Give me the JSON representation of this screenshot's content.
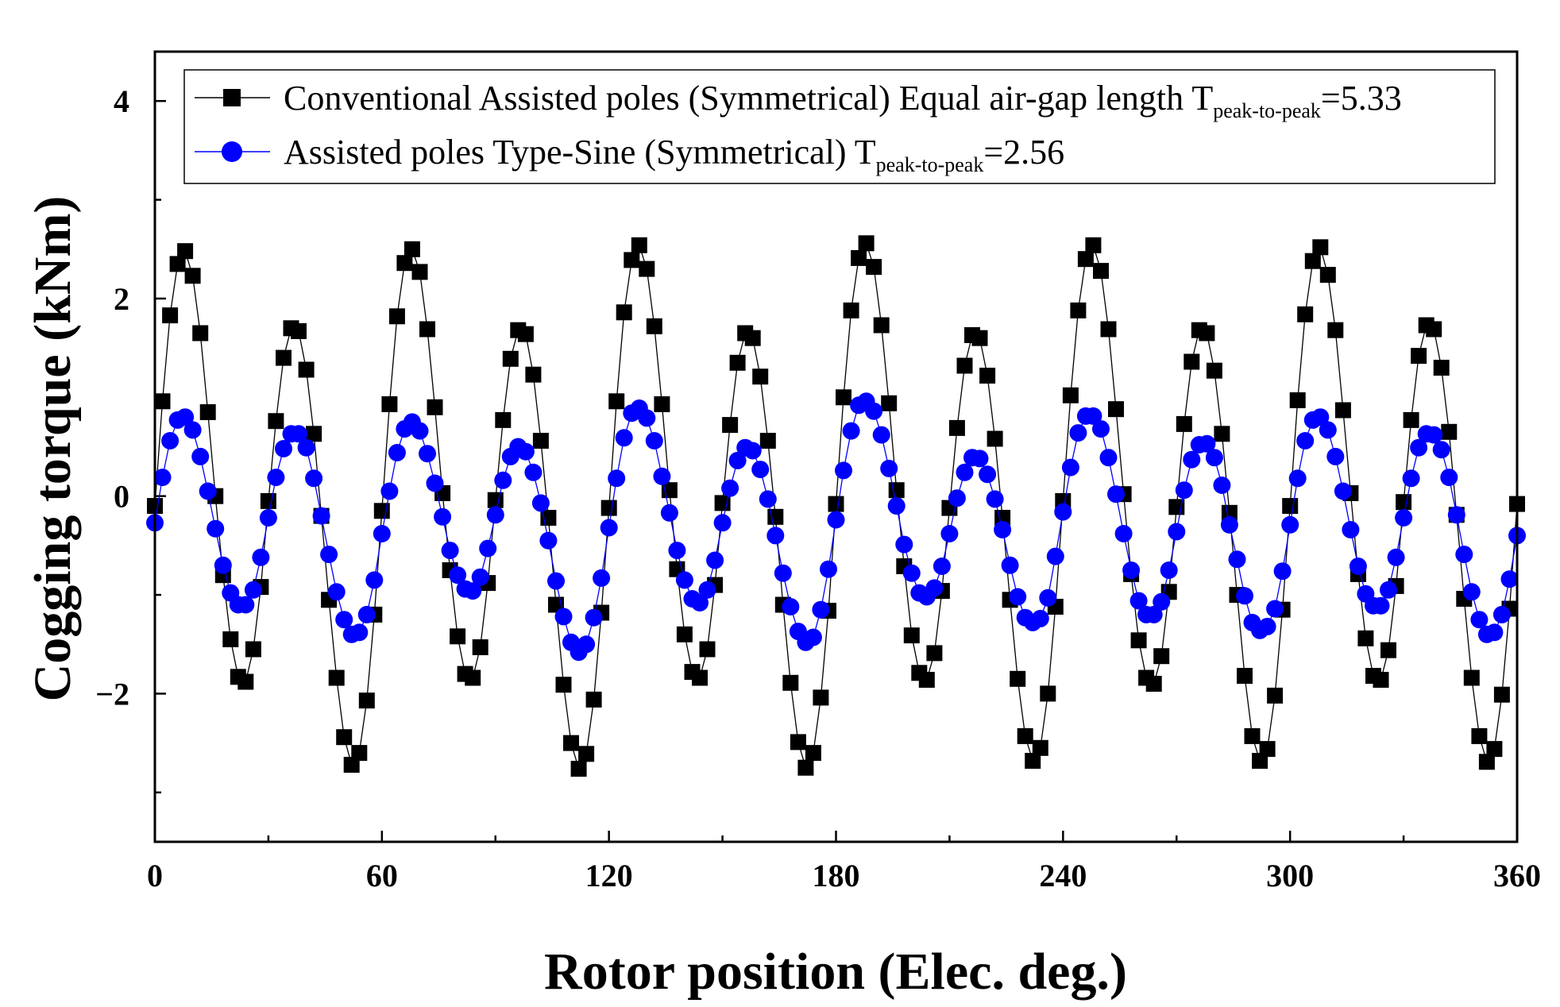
{
  "chart_data": {
    "type": "line",
    "title": "",
    "xlabel": "Rotor position (Elec. deg.)",
    "ylabel": "Cogging torque (kNm)",
    "xlim": [
      0,
      360
    ],
    "ylim": [
      -3.5,
      4.5
    ],
    "xticks": [
      "0",
      "60",
      "120",
      "180",
      "240",
      "300",
      "360"
    ],
    "yticks": [
      "−2",
      "0",
      "2",
      "4"
    ],
    "ytick_values": [
      -2,
      0,
      2,
      4
    ],
    "xtick_values": [
      0,
      60,
      120,
      180,
      240,
      300,
      360
    ],
    "legend_position": "top",
    "x_step": 2,
    "series": [
      {
        "name": "conventional",
        "label_main": "Conventional Assisted poles (Symmetrical) Equal air-gap length T",
        "label_sub": "peak-to-peak",
        "label_tail": "=5.33",
        "color": "#000000",
        "marker": "square",
        "values": [
          -0.1,
          0.96,
          1.83,
          2.35,
          2.48,
          2.23,
          1.65,
          0.85,
          0.0,
          -0.8,
          -1.45,
          -1.83,
          -1.88,
          -1.55,
          -0.92,
          -0.05,
          0.76,
          1.4,
          1.7,
          1.67,
          1.28,
          0.63,
          -0.2,
          -1.05,
          -1.84,
          -2.44,
          -2.72,
          -2.6,
          -2.07,
          -1.2,
          -0.15,
          0.93,
          1.82,
          2.36,
          2.5,
          2.27,
          1.69,
          0.9,
          0.03,
          -0.75,
          -1.42,
          -1.8,
          -1.84,
          -1.53,
          -0.88,
          -0.04,
          0.77,
          1.39,
          1.68,
          1.64,
          1.23,
          0.56,
          -0.22,
          -1.1,
          -1.91,
          -2.5,
          -2.76,
          -2.61,
          -2.06,
          -1.18,
          -0.12,
          0.96,
          1.86,
          2.39,
          2.54,
          2.3,
          1.72,
          0.93,
          0.06,
          -0.74,
          -1.4,
          -1.78,
          -1.84,
          -1.55,
          -0.9,
          -0.07,
          0.72,
          1.35,
          1.65,
          1.6,
          1.21,
          0.56,
          -0.21,
          -1.1,
          -1.89,
          -2.49,
          -2.75,
          -2.6,
          -2.04,
          -1.16,
          -0.08,
          1.0,
          1.88,
          2.41,
          2.56,
          2.32,
          1.73,
          0.94,
          0.06,
          -0.71,
          -1.41,
          -1.79,
          -1.86,
          -1.59,
          -0.96,
          -0.12,
          0.69,
          1.32,
          1.63,
          1.6,
          1.22,
          0.58,
          -0.22,
          -1.05,
          -1.85,
          -2.43,
          -2.68,
          -2.55,
          -2.0,
          -1.12,
          -0.05,
          1.02,
          1.88,
          2.4,
          2.54,
          2.28,
          1.69,
          0.88,
          0.02,
          -0.79,
          -1.46,
          -1.84,
          -1.9,
          -1.62,
          -0.97,
          -0.11,
          0.73,
          1.36,
          1.68,
          1.65,
          1.27,
          0.63,
          -0.17,
          -1.0,
          -1.82,
          -2.43,
          -2.68,
          -2.56,
          -2.02,
          -1.15,
          -0.1,
          0.97,
          1.84,
          2.38,
          2.52,
          2.24,
          1.68,
          0.87,
          0.03,
          -0.79,
          -1.44,
          -1.82,
          -1.86,
          -1.56,
          -0.91,
          -0.06,
          0.77,
          1.42,
          1.73,
          1.69,
          1.3,
          0.65,
          -0.19,
          -1.04,
          -1.84,
          -2.43,
          -2.69,
          -2.56,
          -2.01,
          -1.14,
          -0.08
        ]
      },
      {
        "name": "type-sine",
        "label_main": "Assisted poles Type-Sine (Symmetrical) T",
        "label_sub": "peak-to-peak",
        "label_tail": "=2.56",
        "color": "#0000ff",
        "marker": "circle",
        "values": [
          -0.27,
          0.19,
          0.56,
          0.77,
          0.8,
          0.67,
          0.4,
          0.05,
          -0.33,
          -0.7,
          -0.98,
          -1.1,
          -1.1,
          -0.95,
          -0.62,
          -0.22,
          0.19,
          0.48,
          0.63,
          0.63,
          0.49,
          0.18,
          -0.2,
          -0.59,
          -0.97,
          -1.25,
          -1.4,
          -1.38,
          -1.2,
          -0.85,
          -0.38,
          0.05,
          0.44,
          0.68,
          0.75,
          0.66,
          0.43,
          0.13,
          -0.21,
          -0.55,
          -0.8,
          -0.94,
          -0.96,
          -0.82,
          -0.53,
          -0.19,
          0.16,
          0.4,
          0.5,
          0.45,
          0.24,
          -0.07,
          -0.45,
          -0.86,
          -1.22,
          -1.48,
          -1.58,
          -1.5,
          -1.23,
          -0.83,
          -0.32,
          0.18,
          0.59,
          0.84,
          0.89,
          0.79,
          0.56,
          0.2,
          -0.17,
          -0.55,
          -0.85,
          -1.04,
          -1.08,
          -0.95,
          -0.65,
          -0.27,
          0.08,
          0.36,
          0.49,
          0.46,
          0.27,
          -0.03,
          -0.4,
          -0.78,
          -1.12,
          -1.37,
          -1.48,
          -1.43,
          -1.15,
          -0.74,
          -0.24,
          0.26,
          0.66,
          0.92,
          0.96,
          0.86,
          0.62,
          0.28,
          -0.1,
          -0.49,
          -0.78,
          -0.98,
          -1.02,
          -0.93,
          -0.71,
          -0.38,
          -0.02,
          0.24,
          0.39,
          0.38,
          0.22,
          -0.03,
          -0.34,
          -0.7,
          -1.02,
          -1.23,
          -1.28,
          -1.24,
          -1.03,
          -0.61,
          -0.16,
          0.29,
          0.64,
          0.81,
          0.81,
          0.68,
          0.39,
          0.02,
          -0.38,
          -0.75,
          -1.06,
          -1.2,
          -1.2,
          -1.07,
          -0.75,
          -0.36,
          0.06,
          0.37,
          0.52,
          0.53,
          0.39,
          0.11,
          -0.29,
          -0.64,
          -1.01,
          -1.28,
          -1.36,
          -1.32,
          -1.14,
          -0.76,
          -0.29,
          0.18,
          0.56,
          0.77,
          0.8,
          0.67,
          0.4,
          0.05,
          -0.34,
          -0.71,
          -0.99,
          -1.11,
          -1.11,
          -0.95,
          -0.62,
          -0.22,
          0.18,
          0.49,
          0.63,
          0.62,
          0.47,
          0.19,
          -0.19,
          -0.59,
          -0.97,
          -1.25,
          -1.4,
          -1.38,
          -1.2,
          -0.84,
          -0.4
        ]
      }
    ]
  }
}
